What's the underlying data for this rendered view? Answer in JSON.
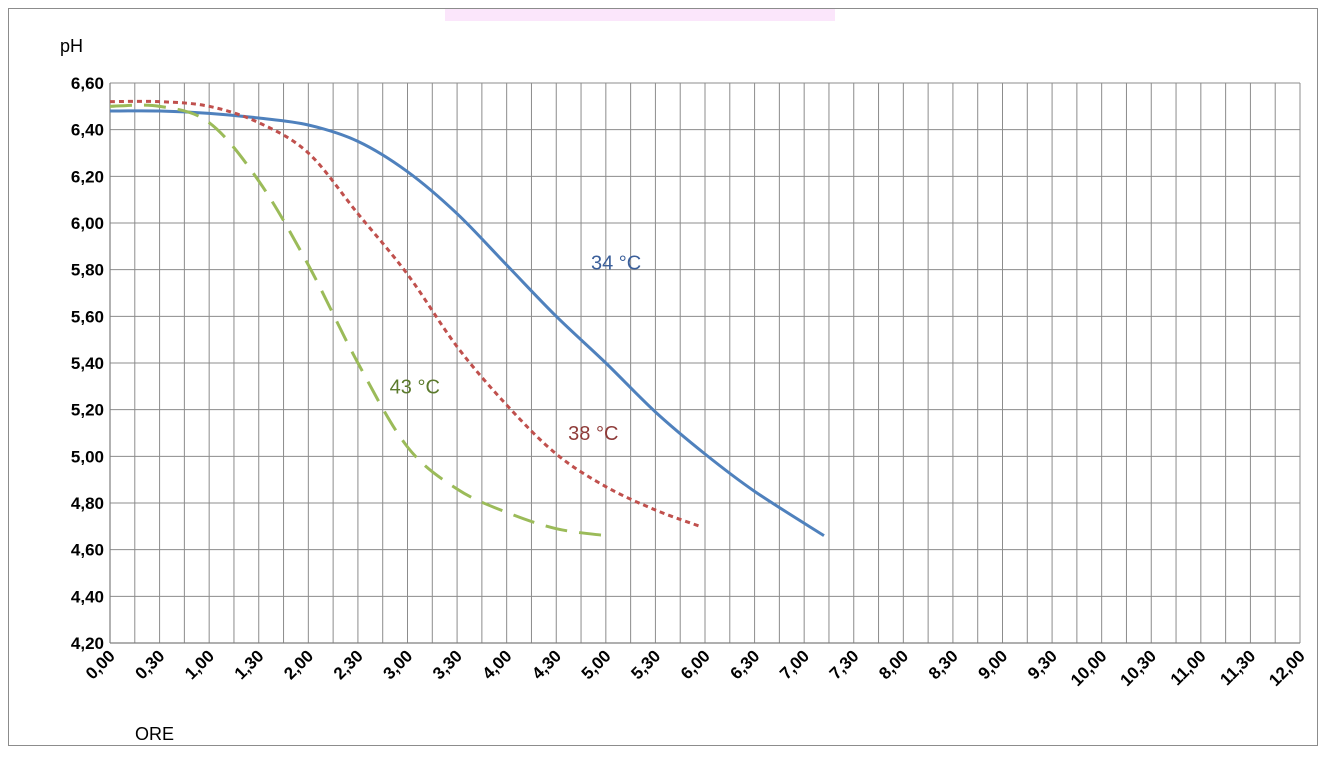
{
  "chart_data": {
    "type": "line",
    "title": "",
    "ylabel": "pH",
    "xlabel": "ORE",
    "ylim": [
      4.2,
      6.6
    ],
    "y_ticks": [
      "4,20",
      "4,40",
      "4,60",
      "4,80",
      "5,00",
      "5,20",
      "5,40",
      "5,60",
      "5,80",
      "6,00",
      "6,20",
      "6,40",
      "6,60"
    ],
    "x_categories": [
      "0,00",
      "0,30",
      "1,00",
      "1,30",
      "2,00",
      "2,30",
      "3,00",
      "3,30",
      "4,00",
      "4,30",
      "5,00",
      "5,30",
      "6,00",
      "6,30",
      "7,00",
      "7,30",
      "8,00",
      "8,30",
      "9,00",
      "9,30",
      "10,00",
      "10,30",
      "11,00",
      "11,30",
      "12,00"
    ],
    "grid": true,
    "legend": "none",
    "series": [
      {
        "name": "34 °C",
        "color": "#4f81bd",
        "dash": "solid",
        "x": [
          0,
          0.5,
          1,
          1.5,
          2,
          2.5,
          3,
          3.5,
          4,
          4.5,
          5,
          5.5,
          6,
          6.5,
          7.2
        ],
        "values": [
          6.48,
          6.48,
          6.47,
          6.45,
          6.42,
          6.35,
          6.22,
          6.04,
          5.82,
          5.6,
          5.4,
          5.19,
          5.01,
          4.85,
          4.66
        ]
      },
      {
        "name": "38 °C",
        "color": "#c0504d",
        "dash": "dotted",
        "x": [
          0,
          0.5,
          1,
          1.5,
          2,
          2.5,
          3,
          3.5,
          4,
          4.5,
          5,
          5.5,
          5.95
        ],
        "values": [
          6.52,
          6.52,
          6.5,
          6.43,
          6.3,
          6.04,
          5.78,
          5.47,
          5.22,
          5.01,
          4.87,
          4.77,
          4.7
        ]
      },
      {
        "name": "43 °C",
        "color": "#9bbb59",
        "dash": "dashed",
        "x": [
          0,
          0.5,
          1,
          1.5,
          2,
          2.5,
          3,
          3.5,
          4,
          4.5,
          5
        ],
        "values": [
          6.5,
          6.5,
          6.43,
          6.18,
          5.82,
          5.4,
          5.04,
          4.86,
          4.76,
          4.69,
          4.66
        ]
      }
    ],
    "annotations": [
      "34 °C",
      "38 °C",
      "43 °C"
    ]
  }
}
